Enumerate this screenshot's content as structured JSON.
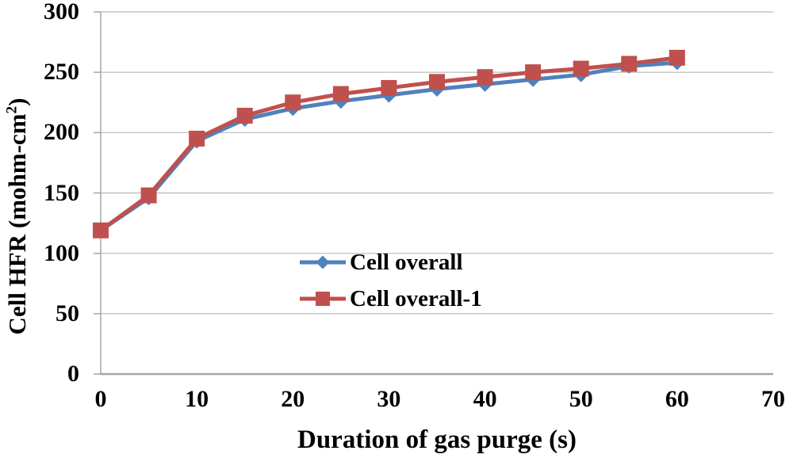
{
  "chart_data": {
    "type": "line",
    "title": "",
    "xlabel": "Duration of gas purge (s)",
    "ylabel": "Cell HFR (mohm-cm²)",
    "x": [
      0,
      5,
      10,
      15,
      20,
      25,
      30,
      35,
      40,
      45,
      50,
      55,
      60
    ],
    "series": [
      {
        "name": "Cell overall",
        "marker": "diamond",
        "color": "#4F81BD",
        "values": [
          119,
          146,
          193,
          211,
          220,
          226,
          231,
          236,
          240,
          244,
          248,
          255,
          258
        ]
      },
      {
        "name": "Cell overall-1",
        "marker": "square",
        "color": "#C0504D",
        "values": [
          119,
          148,
          195,
          214,
          225,
          232,
          237,
          242,
          246,
          250,
          253,
          257,
          262
        ]
      }
    ],
    "xlim": [
      0,
      70
    ],
    "ylim": [
      0,
      300
    ],
    "x_ticks": [
      0,
      10,
      20,
      30,
      40,
      50,
      60,
      70
    ],
    "y_ticks": [
      0,
      50,
      100,
      150,
      200,
      250,
      300
    ],
    "grid": "horizontal-only",
    "legend_position": "center-inside"
  },
  "labels": {
    "ylabel_main": "Cell HFR (mohm-cm",
    "ylabel_sup": "2",
    "ylabel_close": ")"
  },
  "style": {
    "gridline_color": "#b9b9b9",
    "axis_color": "#a6a6a6",
    "text_color": "#000000",
    "background": "#ffffff"
  }
}
